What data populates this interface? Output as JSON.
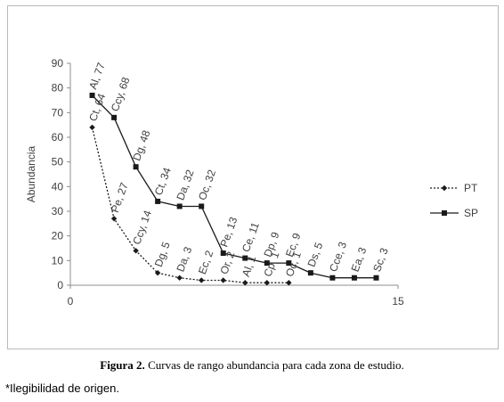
{
  "chart_data": {
    "type": "line",
    "ylabel": "Abundancia",
    "xlim": [
      0,
      15
    ],
    "ylim": [
      0,
      90
    ],
    "x_ticks": [
      "0",
      "15"
    ],
    "y_ticks": [
      "0",
      "10",
      "20",
      "30",
      "40",
      "50",
      "60",
      "70",
      "80",
      "90"
    ],
    "grid": false,
    "legend_position": "right",
    "series": [
      {
        "name": "PT",
        "style": "dotted",
        "marker": "diamond",
        "x": [
          1,
          2,
          3,
          4,
          5,
          6,
          7,
          8,
          9,
          10
        ],
        "values": [
          64,
          27,
          14,
          5,
          3,
          2,
          2,
          1,
          1,
          1
        ],
        "labels": [
          "Ct, 64",
          "Pe, 27",
          "Ccy, 14",
          "Dg, 5",
          "Da, 3",
          "Ec, 2",
          "Or, 2",
          "Al, 1",
          "Cp, 1",
          "Oc, 1"
        ]
      },
      {
        "name": "SP",
        "style": "solid",
        "marker": "square",
        "x": [
          1,
          2,
          3,
          4,
          5,
          6,
          7,
          8,
          9,
          10,
          11,
          12,
          13,
          14
        ],
        "values": [
          77,
          68,
          48,
          34,
          32,
          32,
          13,
          11,
          9,
          9,
          5,
          3,
          3,
          3
        ],
        "labels": [
          "Al, 77",
          "Ccy, 68",
          "Dg, 48",
          "Ct, 34",
          "Da, 32",
          "Oc, 32",
          "Pe, 13",
          "Ce, 11",
          "Dp, 9",
          "Ec, 9",
          "Ds, 5",
          "Cce, 3",
          "Ea, 3",
          "Sc, 3"
        ]
      }
    ]
  },
  "caption": {
    "label": "Figura 2.",
    "text": " Curvas de rango abundancia para cada zona de estudio."
  },
  "footnote": "*Ilegibilidad de origen."
}
